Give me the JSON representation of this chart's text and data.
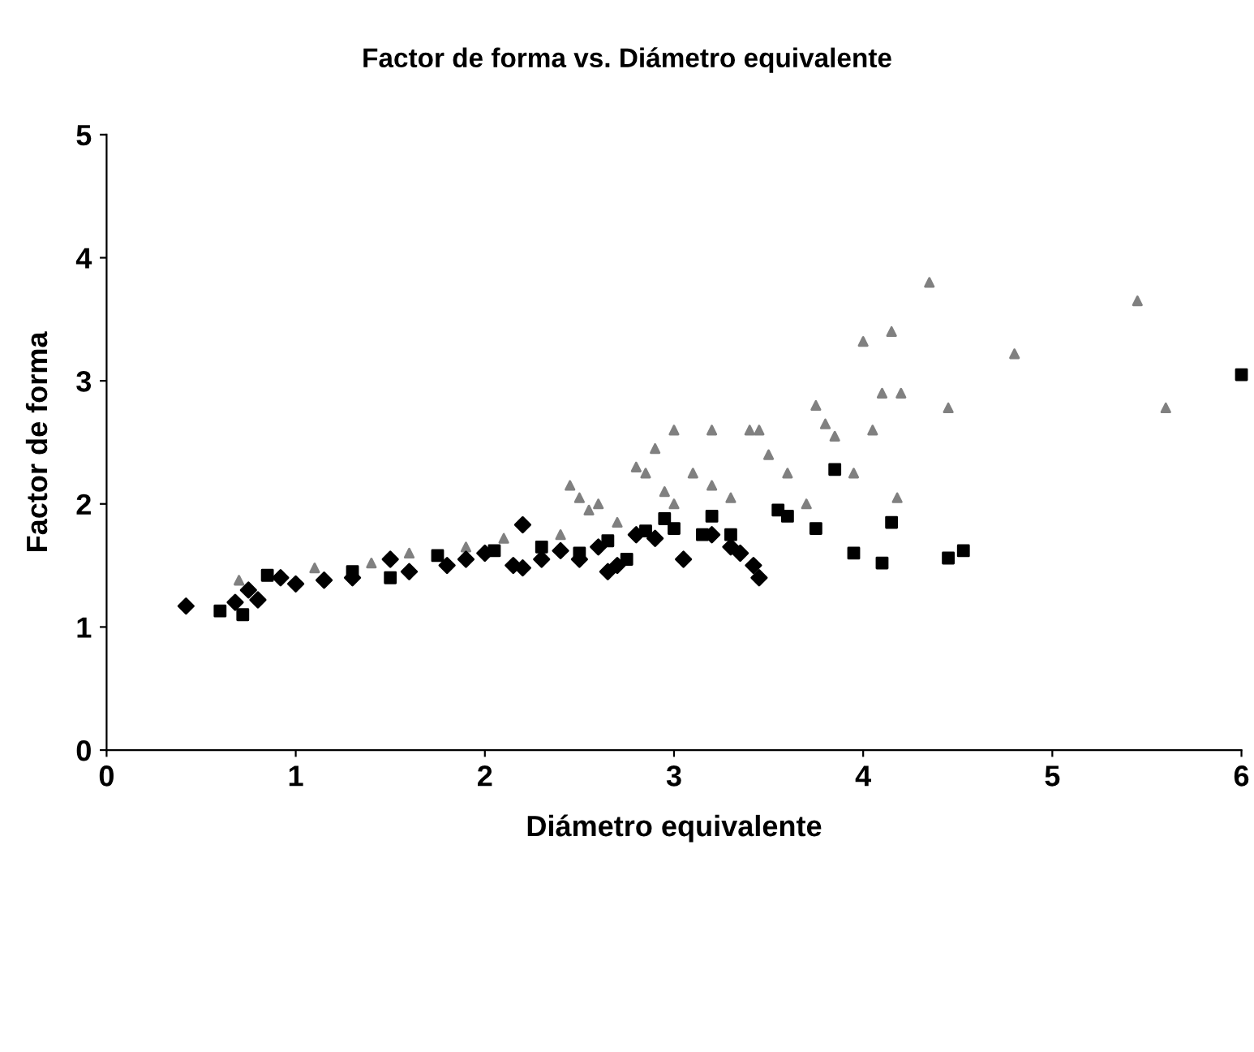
{
  "chart_data": {
    "type": "scatter",
    "title": "Factor de forma vs. Diámetro equivalente",
    "xlabel": "Diámetro equivalente",
    "ylabel": "Factor de forma",
    "xlim": [
      0,
      6
    ],
    "xticks": [
      0,
      1,
      2,
      3,
      4,
      5,
      6
    ],
    "ylim": [
      0,
      5
    ],
    "yticks": [
      0,
      1,
      2,
      3,
      4,
      5
    ],
    "grid": false,
    "series": [
      {
        "marker": "diamond",
        "color": "#000000",
        "x": [
          0.42,
          0.68,
          0.75,
          0.8,
          0.92,
          1.0,
          1.15,
          1.3,
          1.5,
          1.6,
          1.8,
          1.9,
          2.0,
          2.15,
          2.2,
          2.3,
          2.4,
          2.5,
          2.6,
          2.7,
          2.8,
          2.9,
          3.05,
          3.2,
          3.35,
          3.42,
          3.45,
          3.3,
          2.65,
          2.2
        ],
        "values": [
          1.17,
          1.2,
          1.3,
          1.22,
          1.4,
          1.35,
          1.38,
          1.4,
          1.55,
          1.45,
          1.5,
          1.55,
          1.6,
          1.5,
          1.83,
          1.55,
          1.62,
          1.55,
          1.65,
          1.5,
          1.75,
          1.72,
          1.55,
          1.75,
          1.6,
          1.5,
          1.4,
          1.65,
          1.45,
          1.48
        ]
      },
      {
        "marker": "square",
        "color": "#000000",
        "x": [
          0.6,
          0.72,
          0.85,
          1.3,
          1.5,
          1.75,
          2.05,
          2.3,
          2.5,
          2.65,
          2.75,
          2.85,
          2.95,
          3.0,
          3.15,
          3.2,
          3.3,
          3.55,
          3.6,
          3.75,
          3.85,
          3.95,
          4.1,
          4.15,
          4.45,
          4.53,
          6.0
        ],
        "values": [
          1.13,
          1.1,
          1.42,
          1.45,
          1.4,
          1.58,
          1.62,
          1.65,
          1.6,
          1.7,
          1.55,
          1.78,
          1.88,
          1.8,
          1.75,
          1.9,
          1.75,
          1.95,
          1.9,
          1.8,
          2.28,
          1.6,
          1.52,
          1.85,
          1.56,
          1.62,
          3.05
        ]
      },
      {
        "marker": "triangle",
        "color": "#808080",
        "x": [
          0.7,
          1.1,
          1.4,
          1.6,
          1.9,
          2.1,
          2.4,
          2.45,
          2.5,
          2.55,
          2.6,
          2.7,
          2.8,
          2.85,
          2.9,
          2.95,
          3.0,
          3.1,
          3.2,
          3.3,
          3.4,
          3.45,
          3.5,
          3.6,
          3.7,
          3.75,
          3.8,
          3.85,
          3.95,
          4.0,
          4.05,
          4.1,
          4.15,
          4.18,
          4.2,
          4.35,
          4.45,
          4.8,
          5.45,
          5.6,
          3.0,
          3.2
        ],
        "values": [
          1.38,
          1.48,
          1.52,
          1.6,
          1.65,
          1.72,
          1.75,
          2.15,
          2.05,
          1.95,
          2.0,
          1.85,
          2.3,
          2.25,
          2.45,
          2.1,
          2.0,
          2.25,
          2.6,
          2.05,
          2.6,
          2.6,
          2.4,
          2.25,
          2.0,
          2.8,
          2.65,
          2.55,
          2.25,
          3.32,
          2.6,
          2.9,
          3.4,
          2.05,
          2.9,
          3.8,
          2.78,
          3.22,
          3.65,
          2.78,
          2.6,
          2.15
        ]
      }
    ]
  }
}
